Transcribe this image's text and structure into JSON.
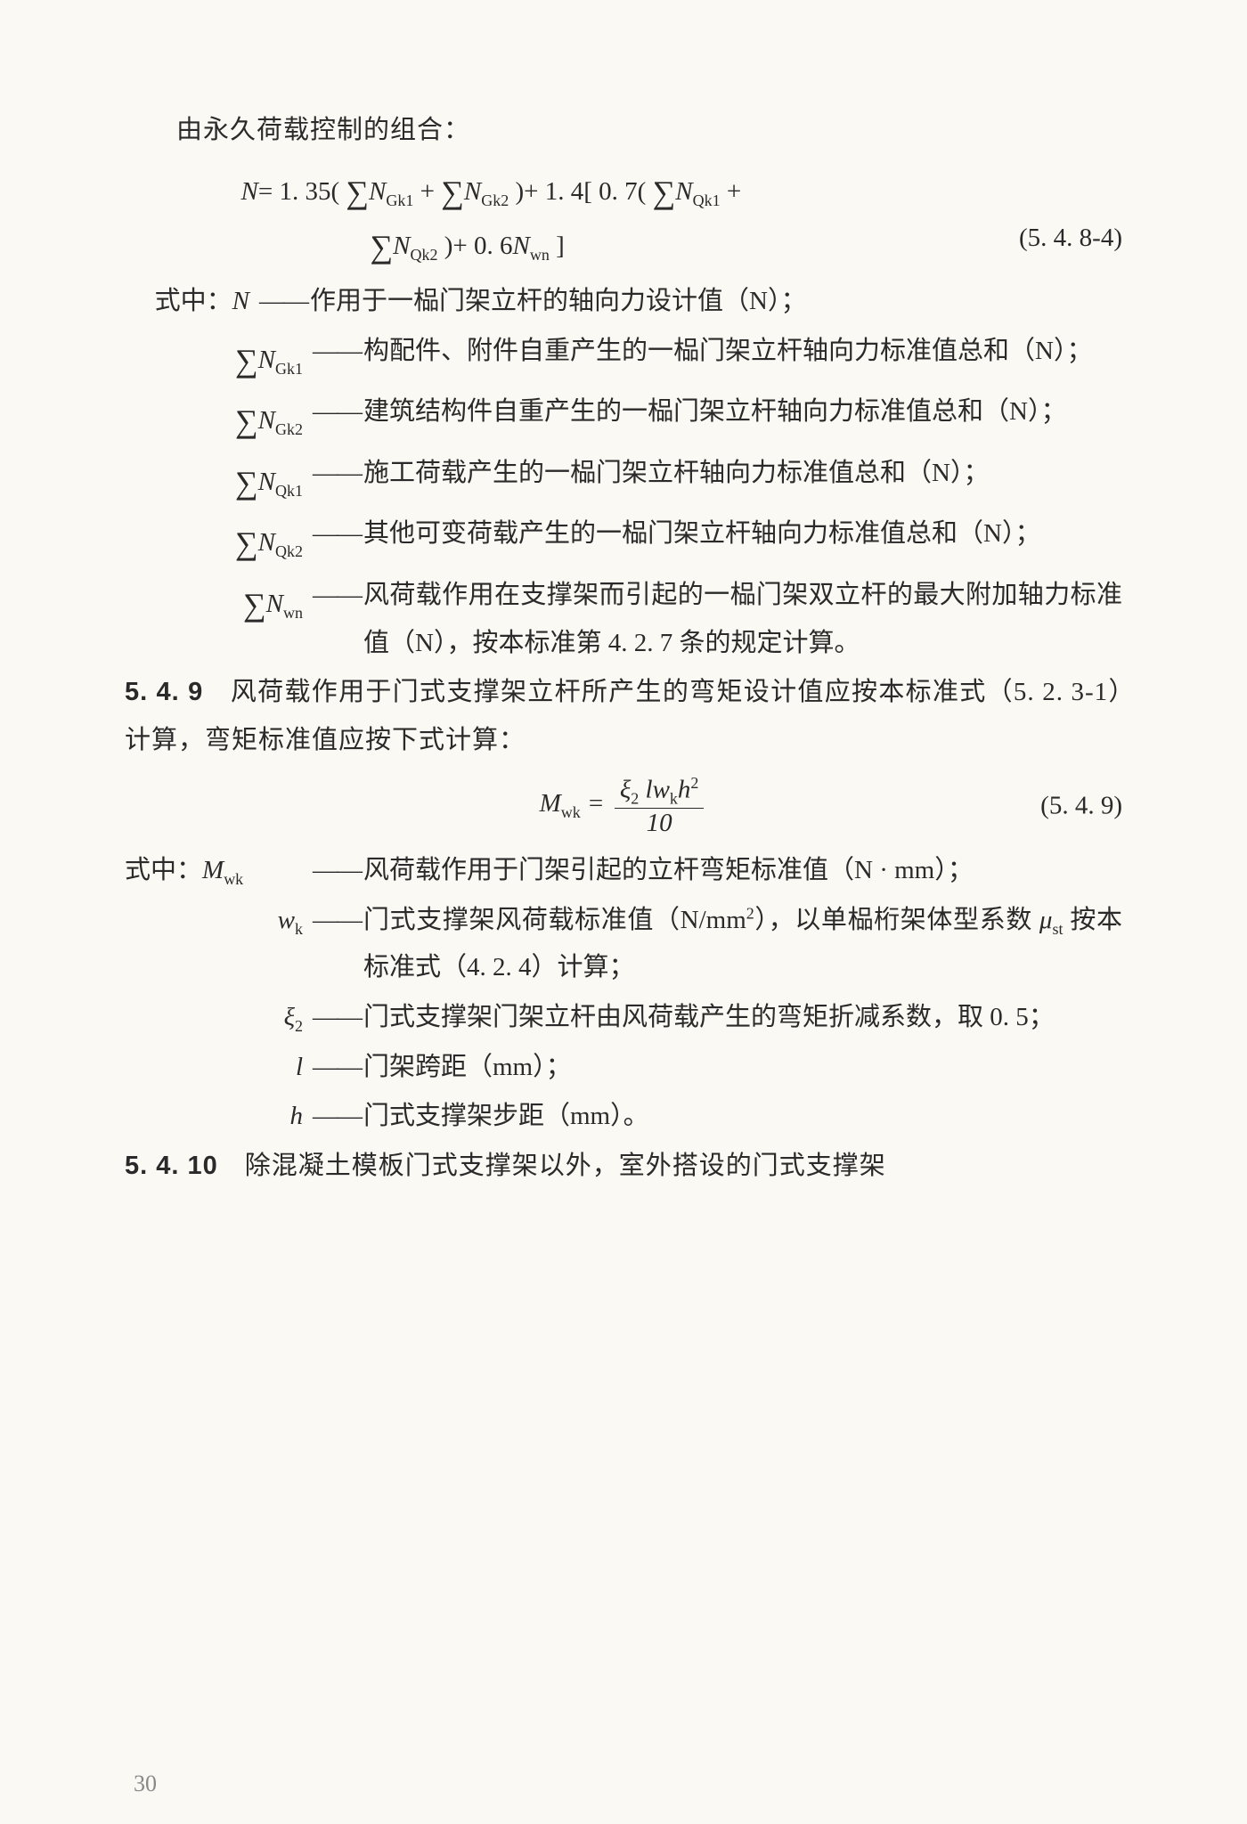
{
  "page_number": "30",
  "intro_line": "由永久荷载控制的组合：",
  "equation1": {
    "line1_html": "<span class='upright'><i>N</i>= 1. 35( <span class='sum'>∑</span><i>N</i><span class='sub'>Gk1</span> + <span class='sum'>∑</span><i>N</i><span class='sub'>Gk2</span> )+ 1. 4[ 0. 7( <span class='sum'>∑</span><i>N</i><span class='sub'>Qk1</span> +</span>",
    "line2_html": "<span class='upright'><span class='sum'>∑</span><i>N</i><span class='sub'>Qk2</span> )+ 0. 6<i>N</i><span class='sub'>wn</span> ]</span>",
    "number": "(5. 4. 8-4)"
  },
  "defs_label": "式中：",
  "defs1": [
    {
      "term_html": "<i>N</i>",
      "body": "作用于一榀门架立杆的轴向力设计值（N）；"
    },
    {
      "term_html": "<span class='sum'>∑</span><i>N</i><span class='sub'>Gk1</span>",
      "body": "构配件、附件自重产生的一榀门架立杆轴向力标准值总和（N）；"
    },
    {
      "term_html": "<span class='sum'>∑</span><i>N</i><span class='sub'>Gk2</span>",
      "body": "建筑结构件自重产生的一榀门架立杆轴向力标准值总和（N）；"
    },
    {
      "term_html": "<span class='sum'>∑</span><i>N</i><span class='sub'>Qk1</span>",
      "body": "施工荷载产生的一榀门架立杆轴向力标准值总和（N）；"
    },
    {
      "term_html": "<span class='sum'>∑</span><i>N</i><span class='sub'>Qk2</span>",
      "body": "其他可变荷载产生的一榀门架立杆轴向力标准值总和（N）；"
    },
    {
      "term_html": "<span class='sum'>∑</span><i>N</i><span class='sub'>wn</span>",
      "body": "风荷载作用在支撑架而引起的一榀门架双立杆的最大附加轴力标准值（N），按本标准第 4. 2. 7 条的规定计算。"
    }
  ],
  "section_549": {
    "num": "5. 4. 9",
    "text": "风荷载作用于门式支撑架立杆所产生的弯矩设计值应按本标准式（5. 2. 3-1）计算，弯矩标准值应按下式计算："
  },
  "equation2": {
    "lhs_html": "<i>M</i><span class='sub'>wk</span> = ",
    "num_html": "<i>ξ</i><span class='sub'>2</span> <i>l</i><i>w</i><span class='sub'>k</span><i>h</i><span class='sup'>2</span>",
    "den_html": "10",
    "number": "(5. 4. 9)"
  },
  "defs2": [
    {
      "term_html": "<i>M</i><span class='sub'>wk</span>",
      "body": "风荷载作用于门架引起的立杆弯矩标准值（N · mm）；"
    },
    {
      "term_html": "<i>w</i><span class='sub'>k</span>",
      "body_html": "门式支撑架风荷载标准值（N/mm<span class='sup'>2</span>），以单榀桁架体型系数 <i>μ</i><span class='sub'>st</span> 按本标准式（4. 2. 4）计算；"
    },
    {
      "term_html": "<i>ξ</i><span class='sub'>2</span>",
      "body": "门式支撑架门架立杆由风荷载产生的弯矩折减系数，取 0. 5；"
    },
    {
      "term_html": "<i>l</i>",
      "body": "门架跨距（mm）；"
    },
    {
      "term_html": "<i>h</i>",
      "body": "门式支撑架步距（mm）。"
    }
  ],
  "section_5410": {
    "num": "5. 4. 10",
    "text": "除混凝土模板门式支撑架以外，室外搭设的门式支撑架"
  },
  "dash": "——"
}
